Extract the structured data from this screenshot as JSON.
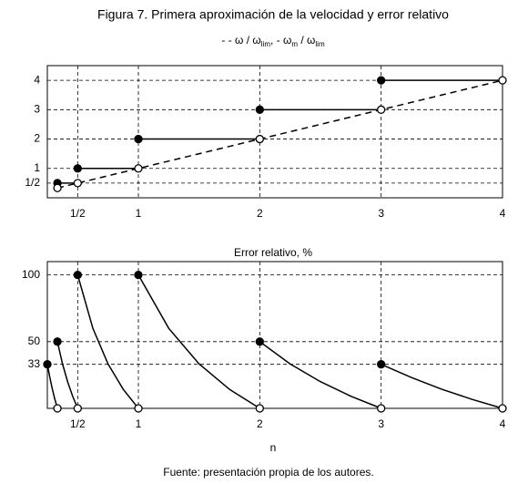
{
  "chart_data": [
    {
      "type": "line",
      "title": "Figura 7. Primera aproximación de la velocidad y error relativo",
      "subtitle_parts": [
        "- - ω / ω",
        "lim",
        ", - ω",
        "m",
        " / ω",
        "lim"
      ],
      "xlim": [
        0.25,
        4
      ],
      "ylim": [
        0,
        4.5
      ],
      "xticks": [
        {
          "value": 0.5,
          "label": "1/2"
        },
        1,
        2,
        3,
        4
      ],
      "yticks": [
        {
          "value": 0.5,
          "label": "1/2"
        },
        1,
        2,
        3,
        4
      ],
      "grid": true,
      "series": [
        {
          "x": [
            0.333,
            0.5,
            1,
            2,
            3,
            4
          ],
          "values": [
            0.333,
            0.5,
            1,
            2,
            3,
            4
          ],
          "color": "#000000",
          "dashed": true,
          "marker_all": "open"
        },
        {
          "x": [
            0.333,
            0.5
          ],
          "values": [
            0.5,
            0.5
          ],
          "color": "#000000",
          "marker_first": "filled"
        },
        {
          "x": [
            0.5,
            1
          ],
          "values": [
            1,
            1
          ],
          "color": "#000000",
          "marker_first": "filled"
        },
        {
          "x": [
            1,
            2
          ],
          "values": [
            2,
            2
          ],
          "color": "#000000",
          "marker_first": "filled"
        },
        {
          "x": [
            2,
            3
          ],
          "values": [
            3,
            3
          ],
          "color": "#000000",
          "marker_first": "filled"
        },
        {
          "x": [
            3,
            4
          ],
          "values": [
            4,
            4
          ],
          "color": "#000000",
          "marker_first": "filled"
        }
      ]
    },
    {
      "type": "line",
      "title": "Error relativo, %",
      "x_label": "n",
      "note": "Fuente: presentación propia de los autores.",
      "xlim": [
        0.25,
        4
      ],
      "ylim": [
        0,
        110
      ],
      "xticks": [
        {
          "value": 0.5,
          "label": "1/2"
        },
        1,
        2,
        3,
        4
      ],
      "yticks": [
        33,
        50,
        100
      ],
      "grid": true,
      "series": [
        {
          "x": [
            0.25,
            0.27,
            0.29,
            0.31,
            0.333
          ],
          "values": [
            33,
            23.5,
            14.9,
            7.5,
            0
          ],
          "color": "#000000",
          "marker_first": "filled",
          "marker_last": "open"
        },
        {
          "x": [
            0.333,
            0.375,
            0.417,
            0.458,
            0.5
          ],
          "values": [
            50,
            33.3,
            20,
            9.2,
            0
          ],
          "color": "#000000",
          "marker_first": "filled",
          "marker_last": "open"
        },
        {
          "x": [
            0.5,
            0.625,
            0.75,
            0.875,
            1
          ],
          "values": [
            100,
            60,
            33.3,
            14.3,
            0
          ],
          "color": "#000000",
          "marker_first": "filled",
          "marker_last": "open"
        },
        {
          "x": [
            1,
            1.25,
            1.5,
            1.75,
            2
          ],
          "values": [
            100,
            60,
            33.3,
            14.3,
            0
          ],
          "color": "#000000",
          "marker_first": "filled",
          "marker_last": "open"
        },
        {
          "x": [
            2,
            2.25,
            2.5,
            2.75,
            3
          ],
          "values": [
            50,
            33.3,
            20,
            9.1,
            0
          ],
          "color": "#000000",
          "marker_first": "filled",
          "marker_last": "open"
        },
        {
          "x": [
            3,
            3.25,
            3.5,
            3.75,
            4
          ],
          "values": [
            33,
            23.1,
            14.3,
            6.7,
            0
          ],
          "color": "#000000",
          "marker_first": "filled",
          "marker_last": "open"
        }
      ]
    }
  ]
}
